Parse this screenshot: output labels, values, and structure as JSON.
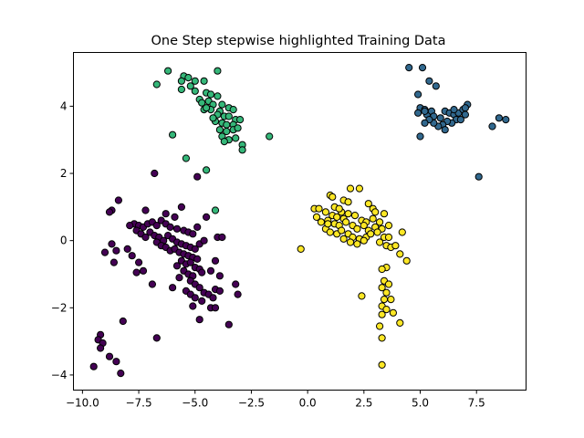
{
  "chart_data": {
    "type": "scatter",
    "title": "One Step stepwise highlighted Training Data",
    "xlabel": "",
    "ylabel": "",
    "xlim": [
      -10.4,
      9.7
    ],
    "ylim": [
      -4.45,
      5.6
    ],
    "xticks": [
      -10.0,
      -7.5,
      -5.0,
      -2.5,
      0.0,
      2.5,
      5.0,
      7.5
    ],
    "xtick_labels": [
      "−10.0",
      "−7.5",
      "−5.0",
      "−2.5",
      "0.0",
      "2.5",
      "5.0",
      "7.5"
    ],
    "yticks": [
      -4,
      -2,
      0,
      2,
      4
    ],
    "ytick_labels": [
      "−4",
      "−2",
      "0",
      "2",
      "4"
    ],
    "grid": false,
    "series": [
      {
        "color": "#440154",
        "points": [
          [
            -6.8,
            2.0
          ],
          [
            -4.9,
            1.9
          ],
          [
            -8.4,
            1.2
          ],
          [
            -7.2,
            0.9
          ],
          [
            -6.3,
            0.8
          ],
          [
            -5.9,
            0.7
          ],
          [
            -8.7,
            0.9
          ],
          [
            -8.8,
            0.85
          ],
          [
            -7.7,
            0.5
          ],
          [
            -7.9,
            0.45
          ],
          [
            -7.5,
            0.45
          ],
          [
            -7.3,
            0.4
          ],
          [
            -7.1,
            0.5
          ],
          [
            -6.9,
            0.55
          ],
          [
            -6.7,
            0.45
          ],
          [
            -6.5,
            0.6
          ],
          [
            -6.3,
            0.5
          ],
          [
            -6.1,
            0.4
          ],
          [
            -5.8,
            0.35
          ],
          [
            -5.5,
            0.3
          ],
          [
            -5.3,
            0.25
          ],
          [
            -5.1,
            0.2
          ],
          [
            -4.9,
            0.4
          ],
          [
            -7.6,
            0.3
          ],
          [
            -7.4,
            0.2
          ],
          [
            -7.2,
            0.1
          ],
          [
            -7.0,
            0.25
          ],
          [
            -6.8,
            0.15
          ],
          [
            -6.6,
            0.1
          ],
          [
            -6.4,
            0.0
          ],
          [
            -6.2,
            0.15
          ],
          [
            -6.0,
            0.05
          ],
          [
            -5.8,
            -0.05
          ],
          [
            -5.6,
            -0.1
          ],
          [
            -5.4,
            -0.15
          ],
          [
            -5.2,
            -0.2
          ],
          [
            -5.0,
            -0.25
          ],
          [
            -4.8,
            -0.1
          ],
          [
            -4.6,
            0.0
          ],
          [
            -6.7,
            -0.05
          ],
          [
            -6.5,
            -0.15
          ],
          [
            -6.3,
            -0.2
          ],
          [
            -6.1,
            -0.3
          ],
          [
            -5.9,
            -0.25
          ],
          [
            -5.7,
            -0.35
          ],
          [
            -5.5,
            -0.4
          ],
          [
            -5.3,
            -0.45
          ],
          [
            -5.1,
            -0.5
          ],
          [
            -4.9,
            -0.55
          ],
          [
            -5.6,
            -0.6
          ],
          [
            -5.4,
            -0.7
          ],
          [
            -5.2,
            -0.65
          ],
          [
            -5.0,
            -0.8
          ],
          [
            -4.8,
            -0.85
          ],
          [
            -5.8,
            -0.75
          ],
          [
            -5.5,
            -0.9
          ],
          [
            -5.3,
            -1.0
          ],
          [
            -5.1,
            -1.05
          ],
          [
            -4.7,
            -0.95
          ],
          [
            -5.7,
            -1.1
          ],
          [
            -5.2,
            -1.2
          ],
          [
            -5.0,
            -1.3
          ],
          [
            -4.8,
            -1.4
          ],
          [
            -5.4,
            -1.5
          ],
          [
            -5.2,
            -1.6
          ],
          [
            -5.0,
            -1.7
          ],
          [
            -4.6,
            -1.55
          ],
          [
            -4.4,
            -1.6
          ],
          [
            -4.2,
            -1.7
          ],
          [
            -4.1,
            -1.45
          ],
          [
            -3.9,
            -1.5
          ],
          [
            -4.7,
            -1.8
          ],
          [
            -5.1,
            -1.95
          ],
          [
            -4.3,
            -2.0
          ],
          [
            -4.1,
            -2.0
          ],
          [
            -3.2,
            -1.3
          ],
          [
            -3.1,
            -1.6
          ],
          [
            -3.5,
            -2.5
          ],
          [
            -4.8,
            -2.35
          ],
          [
            -8.7,
            -0.1
          ],
          [
            -8.5,
            -0.3
          ],
          [
            -9.0,
            -0.35
          ],
          [
            -8.6,
            -0.65
          ],
          [
            -8.0,
            -0.25
          ],
          [
            -7.8,
            -0.45
          ],
          [
            -7.5,
            -0.65
          ],
          [
            -7.3,
            -0.9
          ],
          [
            -7.6,
            -0.95
          ],
          [
            -6.9,
            -1.3
          ],
          [
            -6.0,
            -1.4
          ],
          [
            -4.0,
            0.1
          ],
          [
            -3.8,
            0.1
          ],
          [
            -4.1,
            -0.6
          ],
          [
            -4.3,
            -0.9
          ],
          [
            -3.9,
            -1.05
          ],
          [
            -8.2,
            -2.4
          ],
          [
            -9.2,
            -2.8
          ],
          [
            -9.3,
            -2.95
          ],
          [
            -9.1,
            -3.05
          ],
          [
            -9.2,
            -3.2
          ],
          [
            -8.8,
            -3.45
          ],
          [
            -8.5,
            -3.6
          ],
          [
            -9.5,
            -3.75
          ],
          [
            -8.3,
            -3.95
          ],
          [
            -6.7,
            -2.9
          ],
          [
            -4.5,
            0.7
          ],
          [
            -5.6,
            1.0
          ]
        ]
      },
      {
        "color": "#31688e",
        "points": [
          [
            4.5,
            5.15
          ],
          [
            5.1,
            5.15
          ],
          [
            5.4,
            4.75
          ],
          [
            5.7,
            4.6
          ],
          [
            4.9,
            4.35
          ],
          [
            5.0,
            3.95
          ],
          [
            5.2,
            3.9
          ],
          [
            4.9,
            3.8
          ],
          [
            5.3,
            3.75
          ],
          [
            5.5,
            3.85
          ],
          [
            5.6,
            3.7
          ],
          [
            5.9,
            3.65
          ],
          [
            6.1,
            3.85
          ],
          [
            6.3,
            3.8
          ],
          [
            6.5,
            3.75
          ],
          [
            6.7,
            3.8
          ],
          [
            6.9,
            3.9
          ],
          [
            7.1,
            4.05
          ],
          [
            7.0,
            3.75
          ],
          [
            6.6,
            3.6
          ],
          [
            6.4,
            3.5
          ],
          [
            6.2,
            3.55
          ],
          [
            6.0,
            3.45
          ],
          [
            5.8,
            3.4
          ],
          [
            5.6,
            3.5
          ],
          [
            5.4,
            3.6
          ],
          [
            5.2,
            3.5
          ],
          [
            5.0,
            3.1
          ],
          [
            6.1,
            3.3
          ],
          [
            6.8,
            3.6
          ],
          [
            7.0,
            3.95
          ],
          [
            8.2,
            3.4
          ],
          [
            8.5,
            3.65
          ],
          [
            8.8,
            3.6
          ],
          [
            7.6,
            1.9
          ],
          [
            5.2,
            3.85
          ],
          [
            6.5,
            3.9
          ]
        ]
      },
      {
        "color": "#35b779",
        "points": [
          [
            -6.2,
            5.05
          ],
          [
            -4.0,
            5.05
          ],
          [
            -5.5,
            4.9
          ],
          [
            -5.3,
            4.85
          ],
          [
            -5.6,
            4.75
          ],
          [
            -5.0,
            4.75
          ],
          [
            -4.6,
            4.75
          ],
          [
            -6.7,
            4.65
          ],
          [
            -5.2,
            4.6
          ],
          [
            -5.6,
            4.5
          ],
          [
            -5.0,
            4.45
          ],
          [
            -4.5,
            4.4
          ],
          [
            -4.3,
            4.35
          ],
          [
            -4.0,
            4.3
          ],
          [
            -4.8,
            4.2
          ],
          [
            -4.4,
            4.15
          ],
          [
            -4.7,
            4.1
          ],
          [
            -4.2,
            4.05
          ],
          [
            -3.8,
            4.05
          ],
          [
            -4.6,
            3.9
          ],
          [
            -4.3,
            3.9
          ],
          [
            -3.9,
            3.85
          ],
          [
            -3.5,
            3.95
          ],
          [
            -3.3,
            3.9
          ],
          [
            -4.0,
            3.75
          ],
          [
            -3.7,
            3.7
          ],
          [
            -3.5,
            3.7
          ],
          [
            -3.2,
            3.6
          ],
          [
            -4.1,
            3.55
          ],
          [
            -3.8,
            3.5
          ],
          [
            -3.6,
            3.45
          ],
          [
            -3.3,
            3.45
          ],
          [
            -3.0,
            3.6
          ],
          [
            -3.9,
            3.3
          ],
          [
            -3.6,
            3.25
          ],
          [
            -3.3,
            3.3
          ],
          [
            -3.1,
            3.35
          ],
          [
            -3.8,
            3.1
          ],
          [
            -3.5,
            3.0
          ],
          [
            -3.2,
            3.05
          ],
          [
            -3.7,
            2.95
          ],
          [
            -2.9,
            2.85
          ],
          [
            -2.9,
            2.7
          ],
          [
            -6.0,
            3.15
          ],
          [
            -1.7,
            3.1
          ],
          [
            -5.4,
            2.45
          ],
          [
            -4.5,
            2.1
          ],
          [
            -4.1,
            0.9
          ],
          [
            -4.2,
            3.65
          ],
          [
            -4.5,
            3.95
          ]
        ]
      },
      {
        "color": "#fde725",
        "points": [
          [
            1.9,
            1.55
          ],
          [
            2.3,
            1.55
          ],
          [
            1.0,
            1.35
          ],
          [
            1.1,
            1.3
          ],
          [
            1.6,
            1.2
          ],
          [
            1.8,
            1.15
          ],
          [
            2.7,
            1.1
          ],
          [
            0.3,
            0.95
          ],
          [
            0.5,
            0.95
          ],
          [
            1.2,
            1.0
          ],
          [
            2.9,
            0.95
          ],
          [
            1.5,
            0.85
          ],
          [
            3.0,
            0.85
          ],
          [
            0.4,
            0.7
          ],
          [
            0.8,
            0.85
          ],
          [
            1.1,
            0.75
          ],
          [
            1.3,
            0.7
          ],
          [
            1.6,
            0.65
          ],
          [
            1.8,
            0.8
          ],
          [
            2.1,
            0.75
          ],
          [
            2.4,
            0.6
          ],
          [
            2.6,
            0.55
          ],
          [
            2.9,
            0.65
          ],
          [
            3.2,
            0.55
          ],
          [
            3.4,
            0.8
          ],
          [
            0.6,
            0.55
          ],
          [
            0.9,
            0.6
          ],
          [
            1.2,
            0.5
          ],
          [
            1.4,
            0.45
          ],
          [
            1.7,
            0.55
          ],
          [
            2.0,
            0.45
          ],
          [
            2.2,
            0.35
          ],
          [
            2.5,
            0.45
          ],
          [
            2.7,
            0.3
          ],
          [
            3.0,
            0.4
          ],
          [
            3.3,
            0.35
          ],
          [
            3.6,
            0.45
          ],
          [
            0.8,
            0.35
          ],
          [
            1.0,
            0.25
          ],
          [
            1.3,
            0.2
          ],
          [
            1.5,
            0.3
          ],
          [
            1.8,
            0.2
          ],
          [
            2.0,
            0.1
          ],
          [
            2.3,
            0.05
          ],
          [
            2.6,
            0.1
          ],
          [
            2.8,
            0.2
          ],
          [
            3.1,
            0.25
          ],
          [
            3.4,
            0.1
          ],
          [
            3.6,
            0.1
          ],
          [
            1.6,
            0.05
          ],
          [
            1.9,
            -0.05
          ],
          [
            2.2,
            -0.1
          ],
          [
            2.5,
            0.0
          ],
          [
            3.5,
            -0.15
          ],
          [
            3.7,
            -0.2
          ],
          [
            3.2,
            -0.05
          ],
          [
            4.2,
            0.25
          ],
          [
            3.9,
            -0.15
          ],
          [
            4.1,
            -0.4
          ],
          [
            4.4,
            -0.6
          ],
          [
            3.5,
            -0.8
          ],
          [
            3.3,
            -0.85
          ],
          [
            3.4,
            -1.2
          ],
          [
            3.6,
            -1.3
          ],
          [
            3.3,
            -1.4
          ],
          [
            3.5,
            -1.55
          ],
          [
            2.4,
            -1.65
          ],
          [
            3.4,
            -1.75
          ],
          [
            3.7,
            -1.75
          ],
          [
            3.3,
            -1.95
          ],
          [
            3.5,
            -2.05
          ],
          [
            3.3,
            -2.2
          ],
          [
            3.8,
            -2.15
          ],
          [
            3.2,
            -2.55
          ],
          [
            4.1,
            -2.45
          ],
          [
            3.3,
            -2.9
          ],
          [
            3.3,
            -3.7
          ],
          [
            -0.3,
            -0.25
          ],
          [
            0.9,
            0.5
          ],
          [
            1.4,
            0.95
          ]
        ]
      }
    ]
  }
}
